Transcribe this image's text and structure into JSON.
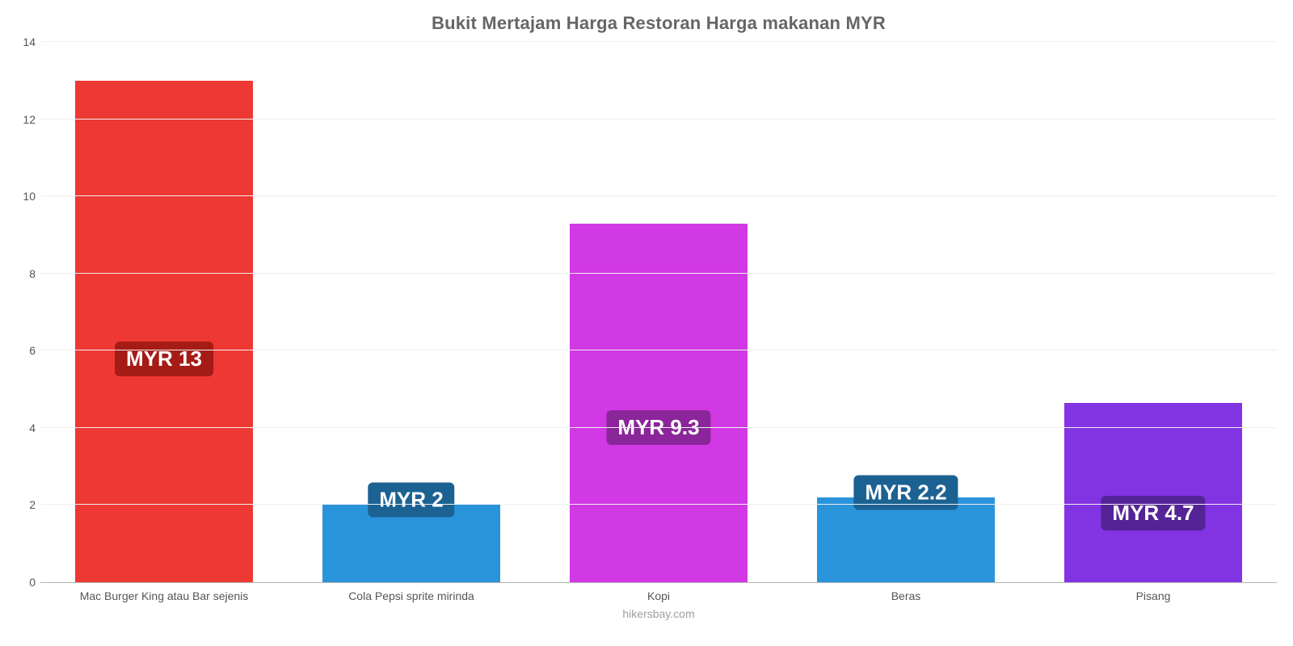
{
  "chart": {
    "type": "bar",
    "title": "Bukit Mertajam Harga Restoran Harga makanan MYR",
    "title_color": "#666666",
    "title_fontsize": 22,
    "background_color": "#ffffff",
    "grid_color": "#f0f0f0",
    "axis_line_color": "#b5b5b5",
    "y": {
      "min": 0,
      "max": 14,
      "ticks": [
        0,
        2,
        4,
        6,
        8,
        10,
        12,
        14
      ],
      "tick_color": "#555555",
      "tick_fontsize": 14
    },
    "x_label_color": "#555555",
    "x_label_fontsize": 14,
    "bar_width_pct": 72,
    "bars": [
      {
        "category": "Mac Burger King atau Bar sejenis",
        "value": 13,
        "value_label": "MYR 13",
        "bar_color": "#ed3833",
        "badge_bg": "#a51b16",
        "badge_text_color": "#ffffff"
      },
      {
        "category": "Cola Pepsi sprite mirinda",
        "value": 2,
        "value_label": "MYR 2",
        "bar_color": "#2a94db",
        "badge_bg": "#1b6293",
        "badge_text_color": "#ffffff"
      },
      {
        "category": "Kopi",
        "value": 9.3,
        "value_label": "MYR 9.3",
        "bar_color": "#d139e4",
        "badge_bg": "#8a2699",
        "badge_text_color": "#ffffff"
      },
      {
        "category": "Beras",
        "value": 2.2,
        "value_label": "MYR 2.2",
        "bar_color": "#2a94db",
        "badge_bg": "#1b6293",
        "badge_text_color": "#ffffff"
      },
      {
        "category": "Pisang",
        "value": 4.65,
        "value_label": "MYR 4.7",
        "bar_color": "#8334e2",
        "badge_bg": "#542496",
        "badge_text_color": "#ffffff"
      }
    ],
    "value_badge_fontsize": 26,
    "credit": "hikersbay.com",
    "credit_color": "#9e9e9e"
  }
}
